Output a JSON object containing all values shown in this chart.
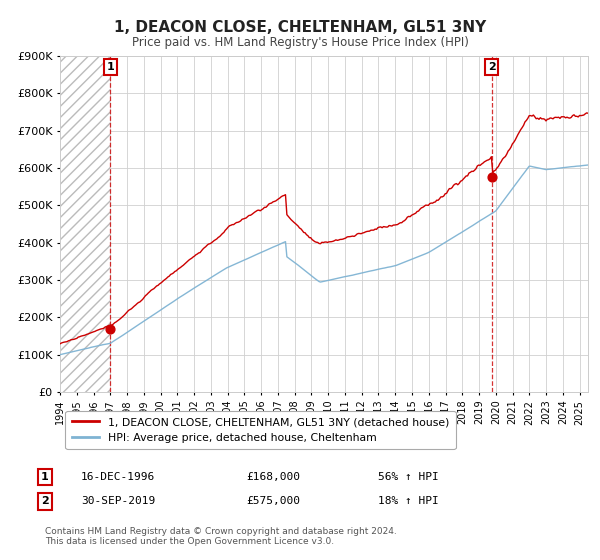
{
  "title": "1, DEACON CLOSE, CHELTENHAM, GL51 3NY",
  "subtitle": "Price paid vs. HM Land Registry's House Price Index (HPI)",
  "legend_line1": "1, DEACON CLOSE, CHELTENHAM, GL51 3NY (detached house)",
  "legend_line2": "HPI: Average price, detached house, Cheltenham",
  "annotation1_box": "1",
  "annotation2_box": "2",
  "sale1_date_label": "16-DEC-1996",
  "sale1_price_label": "£168,000",
  "sale1_pct_label": "56% ↑ HPI",
  "sale2_date_label": "30-SEP-2019",
  "sale2_price_label": "£575,000",
  "sale2_pct_label": "18% ↑ HPI",
  "sale1_year": 1997.0,
  "sale1_price": 168000,
  "sale2_year": 2019.75,
  "sale2_price": 575000,
  "copyright": "Contains HM Land Registry data © Crown copyright and database right 2024.\nThis data is licensed under the Open Government Licence v3.0.",
  "ylim": [
    0,
    900000
  ],
  "xlim_start": 1994.0,
  "xlim_end": 2025.5,
  "property_color": "#cc0000",
  "hpi_color": "#7fb3d3",
  "background_color": "#ffffff",
  "hatch_color": "#cccccc"
}
